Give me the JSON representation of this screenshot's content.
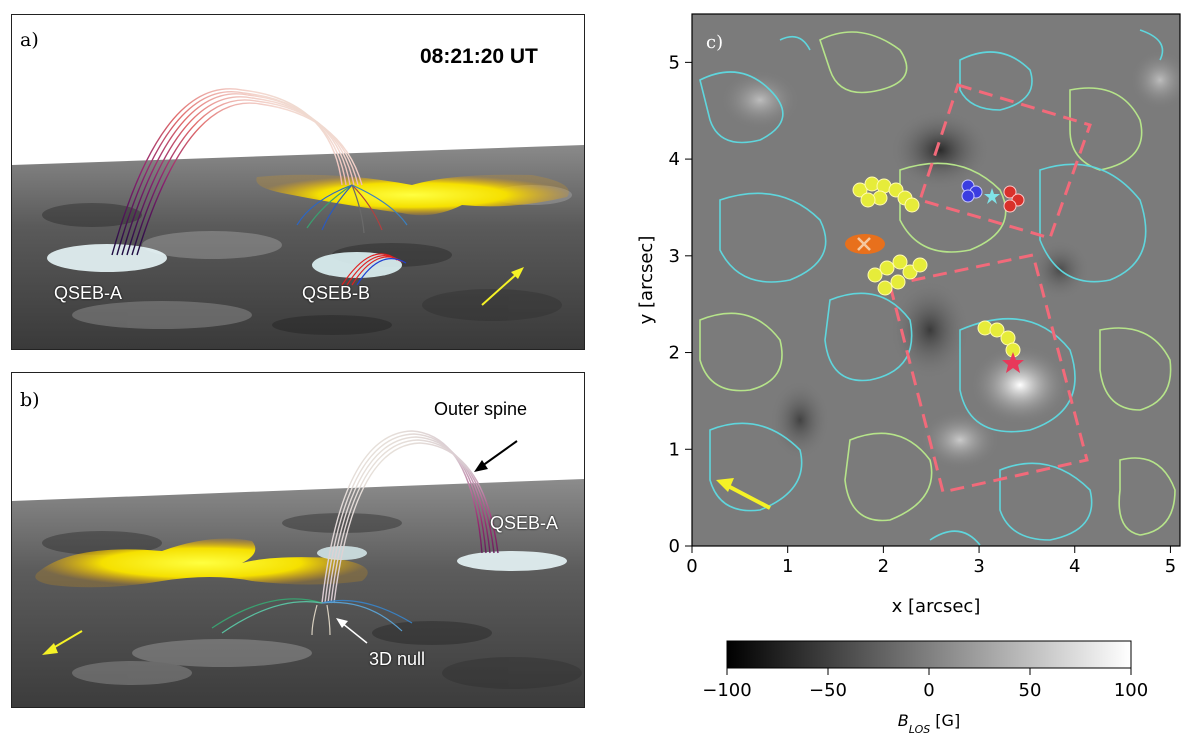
{
  "panel_a": {
    "label": "a)",
    "timestamp": "08:21:20 UT",
    "annotations": {
      "qseb_a": "QSEB-A",
      "qseb_b": "QSEB-B"
    },
    "arrow_color": "#f5f226"
  },
  "panel_b": {
    "label": "b)",
    "annotations": {
      "outer_spine": "Outer spine",
      "qseb_a": "QSEB-A",
      "null_3d": "3D null"
    },
    "arrow_color": "#f5f226"
  },
  "panel_c": {
    "label": "c)",
    "contour_colors": {
      "positive": "#5fd6dd",
      "negative": "#b6e48a"
    },
    "box_color": "#f26a7a",
    "marker_colors": {
      "yellow": "#e6ec3a",
      "blue": "#3b3de0",
      "red": "#d9302a",
      "orange": "#e8701c",
      "star_cyan": "#7fe3e8",
      "star_pink": "#e8385a"
    }
  },
  "chart_data": {
    "type": "heatmap",
    "xlabel": "x [arcsec]",
    "ylabel": "y [arcsec]",
    "xlim": [
      0,
      5.1
    ],
    "ylim": [
      0,
      5.5
    ],
    "x_ticks": [
      "0",
      "1",
      "2",
      "3",
      "4",
      "5"
    ],
    "y_ticks": [
      "0",
      "1",
      "2",
      "3",
      "4",
      "5"
    ],
    "colorbar": {
      "label": "B",
      "label_sub": "LOS",
      "label_unit": " [G]",
      "range": [
        -100,
        100
      ],
      "ticks": [
        "−100",
        "−50",
        "0",
        "50",
        "100"
      ]
    },
    "markers": {
      "blue_cluster": {
        "x": 2.85,
        "y": 3.66
      },
      "red_cluster": {
        "x": 3.27,
        "y": 3.6
      },
      "cyan_star": {
        "x": 3.05,
        "y": 3.6
      },
      "pink_star": {
        "x": 3.3,
        "y": 1.9
      },
      "orange_x": {
        "x": 1.72,
        "y": 3.12
      }
    }
  }
}
